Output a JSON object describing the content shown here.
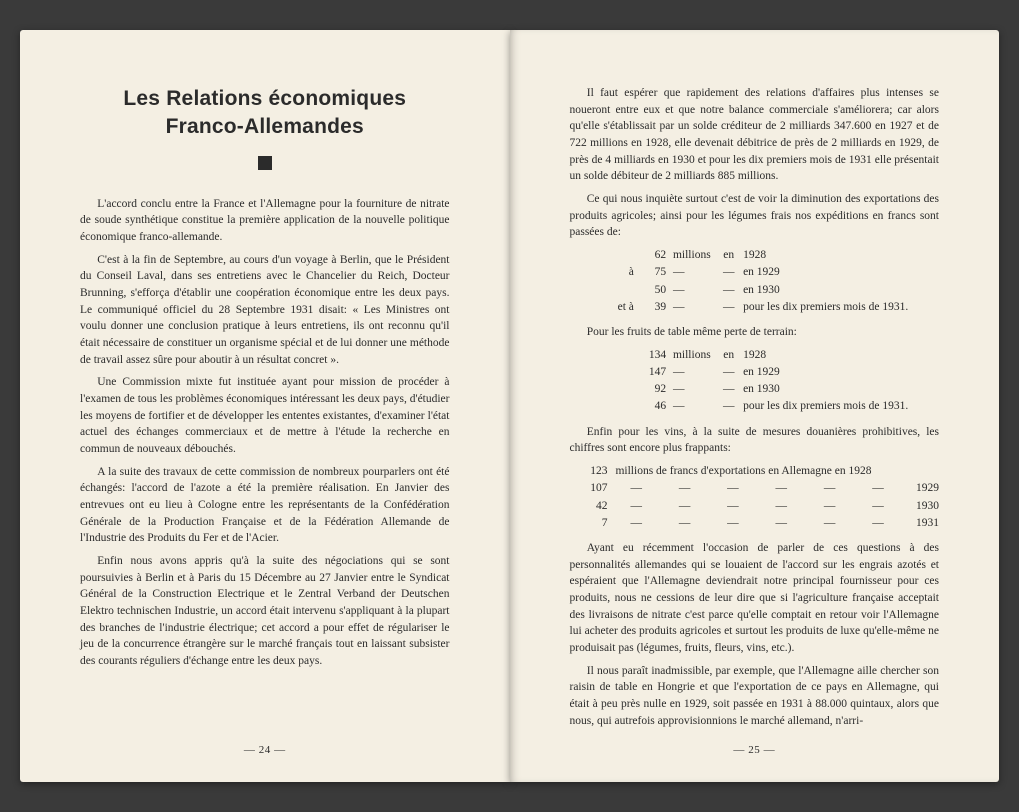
{
  "colors": {
    "background": "#3a3a3a",
    "paper": "#f4efe3",
    "text": "#2b2b2b"
  },
  "typography": {
    "body_font": "Georgia / serif",
    "body_size_pt": 9,
    "title_font": "Arial / sans-serif",
    "title_size_pt": 16,
    "title_weight": "900"
  },
  "left": {
    "title_line1": "Les Relations économiques",
    "title_line2": "Franco-Allemandes",
    "paragraphs": [
      "L'accord conclu entre la France et l'Allemagne pour la fourniture de nitrate de soude synthétique constitue la première application de la nouvelle politique économique franco-allemande.",
      "C'est à la fin de Septembre, au cours d'un voyage à Berlin, que le Président du Conseil Laval, dans ses entretiens avec le Chancelier du Reich, Docteur Brunning, s'efforça d'établir une coopération économique entre les deux pays. Le communiqué officiel du 28 Septembre 1931 disait: « Les Ministres ont voulu donner une conclusion pratique à leurs entretiens, ils ont reconnu qu'il était nécessaire de constituer un organisme spécial et de lui donner une méthode de travail assez sûre pour aboutir à un résultat concret ».",
      "Une Commission mixte fut instituée ayant pour mission de procéder à l'examen de tous les problèmes économiques intéressant les deux pays, d'étudier les moyens de fortifier et de développer les ententes existantes, d'examiner l'état actuel des échanges commerciaux et de mettre à l'étude la recherche en commun de nouveaux débouchés.",
      "A la suite des travaux de cette commission de nombreux pourparlers ont été échangés: l'accord de l'azote a été la première réalisation. En Janvier des entrevues ont eu lieu à Cologne entre les représentants de la Confédération Générale de la Production Française et de la Fédération Allemande de l'Industrie des Produits du Fer et de l'Acier.",
      "Enfin nous avons appris qu'à la suite des négociations qui se sont poursuivies à Berlin et à Paris du 15 Décembre au 27 Janvier entre le Syndicat Général de la Construction Electrique et le Zentral Verband der Deutschen Elektro technischen Industrie, un accord était intervenu s'appliquant à la plupart des branches de l'industrie électrique; cet accord a pour effet de régulariser le jeu de la concurrence étrangère sur le marché français tout en laissant subsister des courants réguliers d'échange entre les deux pays."
    ],
    "page_number": "— 24 —"
  },
  "right": {
    "paragraphs_a": [
      "Il faut espérer que rapidement des relations d'affaires plus intenses se noueront entre eux et que notre balance commerciale s'améliorera; car alors qu'elle s'établissait par un solde créditeur de 2 milliards 347.600 en 1927 et de 722 millions en 1928, elle devenait débitrice de près de 2 milliards en 1929, de près de 4 milliards en 1930 et pour les dix premiers mois de 1931 elle présentait un solde débiteur de 2 milliards 885 millions.",
      "Ce qui nous inquiète surtout c'est de voir la diminution des exportations des produits agricoles; ainsi pour les légumes frais nos expéditions en francs sont passées de:"
    ],
    "table_legumes": {
      "type": "aligned-list",
      "rows": [
        {
          "pre": "",
          "num": "62",
          "unit": "millions",
          "y": "en",
          "year": "1928",
          "rest": ""
        },
        {
          "pre": "à",
          "num": "75",
          "unit": "—",
          "y": "—",
          "year": "",
          "rest": "en 1929"
        },
        {
          "pre": "",
          "num": "50",
          "unit": "—",
          "y": "—",
          "year": "",
          "rest": "en 1930"
        },
        {
          "pre": "et à",
          "num": "39",
          "unit": "—",
          "y": "—",
          "year": "",
          "rest": "pour les dix premiers mois de 1931."
        }
      ]
    },
    "paragraphs_b": [
      "Pour les fruits de table même perte de terrain:"
    ],
    "table_fruits": {
      "type": "aligned-list",
      "rows": [
        {
          "pre": "",
          "num": "134",
          "unit": "millions",
          "y": "en",
          "year": "1928",
          "rest": ""
        },
        {
          "pre": "",
          "num": "147",
          "unit": "—",
          "y": "—",
          "year": "",
          "rest": "en 1929"
        },
        {
          "pre": "",
          "num": "92",
          "unit": "—",
          "y": "—",
          "year": "",
          "rest": "en 1930"
        },
        {
          "pre": "",
          "num": "46",
          "unit": "—",
          "y": "—",
          "year": "",
          "rest": "pour les dix premiers mois de 1931."
        }
      ]
    },
    "paragraphs_c": [
      "Enfin pour les vins, à la suite de mesures douanières prohibitives, les chiffres sont encore plus frappants:"
    ],
    "table_vins": {
      "type": "aligned-table",
      "header": "123 millions de francs d'exportations en Allemagne en 1928",
      "rows": [
        {
          "v": "107",
          "year": "1929"
        },
        {
          "v": "42",
          "year": "1930"
        },
        {
          "v": "7",
          "year": "1931"
        }
      ],
      "dash_columns": 6
    },
    "paragraphs_d": [
      "Ayant eu récemment l'occasion de parler de ces questions à des personnalités allemandes qui se louaient de l'accord sur les engrais azotés et espéraient que l'Allemagne deviendrait notre principal fournisseur pour ces produits, nous ne cessions de leur dire que si l'agriculture française acceptait des livraisons de nitrate c'est parce qu'elle comptait en retour voir l'Allemagne lui acheter des produits agricoles et surtout les produits de luxe qu'elle-même ne produisait pas (légumes, fruits, fleurs, vins, etc.).",
      "Il nous paraît inadmissible, par exemple, que l'Allemagne aille chercher son raisin de table en Hongrie et que l'exportation de ce pays en Allemagne, qui était à peu près nulle en 1929, soit passée en 1931 à 88.000 quintaux, alors que nous, qui autrefois approvisionnions le marché allemand, n'arri-"
    ],
    "page_number": "— 25 —"
  }
}
